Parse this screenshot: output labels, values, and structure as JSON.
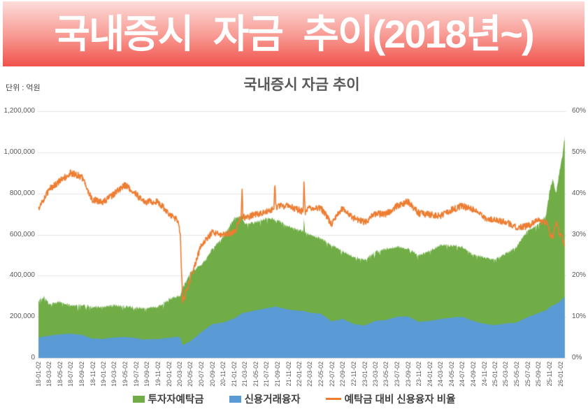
{
  "banner": {
    "title": "국내증시 자금 추이(2018년~)"
  },
  "chart": {
    "title": "국내증시 자금 추이",
    "unit_label": "단위 : 억원"
  },
  "chart_data": {
    "type": "area+line",
    "title": "국내증시 자금 추이",
    "unit": "억원",
    "grid": "horizontal",
    "legend_position": "bottom",
    "left_axis": {
      "min": 0,
      "max": 1200000,
      "step": 200000,
      "tick_labels": [
        "0",
        "200,000",
        "400,000",
        "600,000",
        "800,000",
        "1,000,000",
        "1,200,000"
      ]
    },
    "right_axis": {
      "min": 0,
      "max": 60,
      "step": 10,
      "tick_labels": [
        "0%",
        "10%",
        "20%",
        "30%",
        "40%",
        "50%",
        "60%"
      ]
    },
    "x_range": [
      "18-01-02",
      "26-01-27"
    ],
    "x_tick_labels": [
      "18-01-02",
      "18-03-02",
      "18-05-02",
      "18-07-02",
      "18-09-02",
      "18-11-02",
      "19-01-02",
      "19-03-02",
      "19-05-02",
      "19-07-02",
      "19-09-02",
      "19-11-02",
      "20-01-02",
      "20-03-02",
      "20-05-02",
      "20-07-02",
      "20-09-02",
      "20-11-02",
      "21-01-02",
      "21-03-02",
      "21-05-02",
      "21-07-02",
      "21-09-02",
      "21-11-02",
      "22-01-02",
      "22-03-02",
      "22-05-02",
      "22-07-02",
      "22-09-02",
      "22-11-02",
      "23-01-02",
      "23-03-02",
      "23-05-02",
      "23-07-02",
      "23-09-02",
      "23-11-02",
      "24-01-02",
      "24-03-02",
      "24-05-02",
      "24-07-02",
      "24-09-02",
      "24-11-02",
      "25-01-02",
      "25-03-02",
      "25-05-02",
      "25-07-02",
      "25-09-02",
      "25-11-02",
      "26-01-02"
    ],
    "x": [
      "18-01-02",
      "18-02-01",
      "18-03-02",
      "18-05-02",
      "18-07-02",
      "18-09-03",
      "18-10-29",
      "19-01-02",
      "19-03-04",
      "19-05-02",
      "19-07-01",
      "19-08-07",
      "19-11-01",
      "20-01-02",
      "20-02-20",
      "20-03-06",
      "20-03-19",
      "20-05-04",
      "20-07-02",
      "20-09-02",
      "20-11-02",
      "21-01-04",
      "21-02-10",
      "21-02-15",
      "21-02-19",
      "21-03-02",
      "21-05-03",
      "21-07-02",
      "21-08-12",
      "21-08-17",
      "21-08-23",
      "21-09-02",
      "21-11-01",
      "22-01-24",
      "22-01-27",
      "22-02-03",
      "22-03-02",
      "22-05-02",
      "22-07-01",
      "22-09-01",
      "22-11-02",
      "23-01-02",
      "23-03-02",
      "23-05-02",
      "23-07-03",
      "23-09-01",
      "23-11-01",
      "24-01-02",
      "24-03-04",
      "24-05-02",
      "24-07-01",
      "24-09-02",
      "24-11-01",
      "25-01-02",
      "25-03-04",
      "25-05-02",
      "25-07-01",
      "25-09-01",
      "25-10-15",
      "25-11-03",
      "25-11-20",
      "25-12-08",
      "25-12-26",
      "26-01-12",
      "26-01-26"
    ],
    "series": [
      {
        "name": "투자자예탁금",
        "type": "area",
        "axis": "left",
        "color": "#70ad47",
        "values": [
          280000,
          295000,
          265000,
          270000,
          255000,
          260000,
          248000,
          250000,
          255000,
          250000,
          245000,
          242000,
          248000,
          285000,
          300000,
          305000,
          340000,
          420000,
          450000,
          530000,
          590000,
          685000,
          690000,
          695000,
          680000,
          650000,
          660000,
          680000,
          675000,
          670000,
          668000,
          670000,
          640000,
          615000,
          680000,
          610000,
          600000,
          580000,
          550000,
          520000,
          490000,
          478000,
          515000,
          530000,
          540000,
          532000,
          500000,
          520000,
          550000,
          545000,
          540000,
          500000,
          490000,
          478000,
          510000,
          540000,
          620000,
          650000,
          700000,
          820000,
          870000,
          795000,
          900000,
          980000,
          1085000
        ]
      },
      {
        "name": "신용거래융자",
        "type": "area",
        "axis": "left",
        "color": "#5b9bd5",
        "values": [
          99000,
          104000,
          108000,
          115000,
          118000,
          112000,
          95000,
          93000,
          100000,
          102000,
          97000,
          90000,
          92000,
          98000,
          103000,
          98000,
          62000,
          82000,
          126000,
          165000,
          172000,
          193000,
          215000,
          217000,
          218000,
          220000,
          232000,
          242000,
          248000,
          250000,
          249000,
          248000,
          235000,
          228000,
          227000,
          226000,
          220000,
          215000,
          178000,
          190000,
          165000,
          158000,
          180000,
          185000,
          200000,
          202000,
          176000,
          180000,
          190000,
          196000,
          200000,
          180000,
          166000,
          160000,
          168000,
          172000,
          198000,
          218000,
          232000,
          248000,
          255000,
          262000,
          272000,
          285000,
          298000
        ]
      },
      {
        "name": "예탁금 대비 신용융자 비율",
        "type": "line",
        "axis": "right",
        "color": "#ed7d31",
        "values": [
          36,
          38.5,
          41,
          43,
          45,
          44,
          38.5,
          38,
          40,
          42,
          40,
          38,
          38,
          35,
          33.5,
          30,
          13.5,
          19.5,
          27.5,
          30.5,
          30,
          30.5,
          34.5,
          41.5,
          34.5,
          34,
          35,
          35.5,
          36.5,
          43.5,
          36.5,
          37,
          37,
          35.5,
          43.5,
          35.5,
          36.5,
          36.5,
          32.5,
          36.5,
          34,
          33,
          35,
          35,
          37,
          38,
          35.2,
          34.8,
          34.6,
          36,
          37,
          36,
          34,
          33.5,
          33,
          31.8,
          32,
          33.5,
          33,
          30.3,
          29.3,
          33,
          30.2,
          29,
          27.5
        ]
      }
    ],
    "legend": [
      {
        "label": "투자자예탁금",
        "color": "#70ad47",
        "marker": "rect"
      },
      {
        "label": "신용거래융자",
        "color": "#5b9bd5",
        "marker": "rect"
      },
      {
        "label": "예탁금 대비 신용융자 비율",
        "color": "#ed7d31",
        "marker": "line"
      }
    ],
    "style": {
      "grid_color": "#e6e6e6",
      "axis_text_color": "#595959"
    }
  }
}
